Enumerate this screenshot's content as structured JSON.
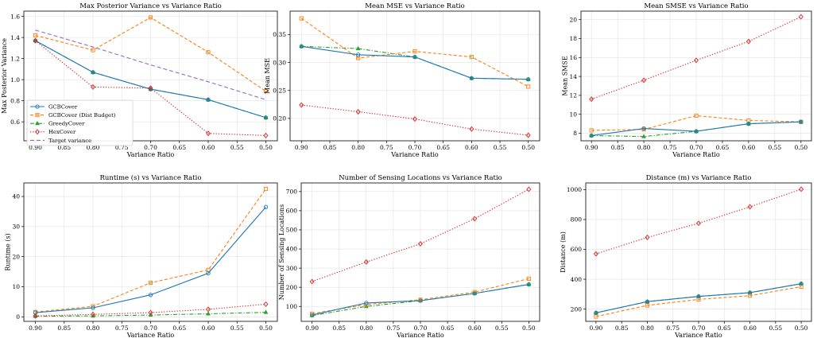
{
  "chart_data": [
    {
      "type": "line",
      "title": "Max Posterior Variance vs Variance Ratio",
      "xlabel": "Variance Ratio",
      "ylabel": "Max Posterior Variance",
      "x": [
        0.9,
        0.8,
        0.7,
        0.6,
        0.5
      ],
      "xlim": [
        0.92,
        0.48
      ],
      "ylim": [
        0.42,
        1.65
      ],
      "xticks": [
        "0.90",
        "0.85",
        "0.80",
        "0.75",
        "0.70",
        "0.65",
        "0.60",
        "0.55",
        "0.50"
      ],
      "yticks": [
        {
          "v": 0.6,
          "t": "0.6"
        },
        {
          "v": 0.8,
          "t": "0.8"
        },
        {
          "v": 1.0,
          "t": "1.0"
        },
        {
          "v": 1.2,
          "t": "1.2"
        },
        {
          "v": 1.4,
          "t": "1.4"
        },
        {
          "v": 1.6,
          "t": "1.6"
        }
      ],
      "legend": "lower-left",
      "series": [
        {
          "name": "GCBCover",
          "style": "gcb",
          "values": [
            1.37,
            1.07,
            0.91,
            0.81,
            0.64
          ]
        },
        {
          "name": "GCBCover (Dist Budget)",
          "style": "dist",
          "values": [
            1.42,
            1.28,
            1.59,
            1.26,
            0.89
          ]
        },
        {
          "name": "GreedyCover",
          "style": "greedy",
          "values": [
            1.37,
            1.07,
            0.91,
            0.81,
            0.64
          ]
        },
        {
          "name": "HexCover",
          "style": "hex",
          "values": [
            1.37,
            0.93,
            0.92,
            0.49,
            0.47
          ]
        },
        {
          "name": "Target variance",
          "style": "target",
          "values": [
            1.47,
            1.31,
            1.14,
            0.98,
            0.81
          ]
        }
      ]
    },
    {
      "type": "line",
      "title": "Mean MSE vs Variance Ratio",
      "xlabel": "Variance Ratio",
      "ylabel": "Mean MSE",
      "x": [
        0.9,
        0.8,
        0.7,
        0.6,
        0.5
      ],
      "xlim": [
        0.92,
        0.48
      ],
      "ylim": [
        0.16,
        0.392
      ],
      "xticks": [
        "0.90",
        "0.85",
        "0.80",
        "0.75",
        "0.70",
        "0.65",
        "0.60",
        "0.55",
        "0.50"
      ],
      "yticks": [
        {
          "v": 0.2,
          "t": "0.20"
        },
        {
          "v": 0.25,
          "t": "0.25"
        },
        {
          "v": 0.3,
          "t": "0.30"
        },
        {
          "v": 0.35,
          "t": "0.35"
        }
      ],
      "series": [
        {
          "name": "GCBCover",
          "style": "gcb",
          "values": [
            0.329,
            0.314,
            0.31,
            0.272,
            0.27
          ]
        },
        {
          "name": "GCBCover (Dist Budget)",
          "style": "dist",
          "values": [
            0.379,
            0.308,
            0.32,
            0.31,
            0.257
          ]
        },
        {
          "name": "GreedyCover",
          "style": "greedy",
          "values": [
            0.329,
            0.325,
            0.31,
            0.272,
            0.27
          ]
        },
        {
          "name": "HexCover",
          "style": "hex",
          "values": [
            0.224,
            0.212,
            0.199,
            0.181,
            0.17
          ]
        }
      ]
    },
    {
      "type": "line",
      "title": "Mean SMSE vs Variance Ratio",
      "xlabel": "Variance Ratio",
      "ylabel": "Mean SMSE",
      "x": [
        0.9,
        0.8,
        0.7,
        0.6,
        0.5
      ],
      "xlim": [
        0.92,
        0.48
      ],
      "ylim": [
        7.2,
        20.9
      ],
      "xticks": [
        "0.90",
        "0.85",
        "0.80",
        "0.75",
        "0.70",
        "0.65",
        "0.60",
        "0.55",
        "0.50"
      ],
      "yticks": [
        {
          "v": 8,
          "t": "8"
        },
        {
          "v": 10,
          "t": "10"
        },
        {
          "v": 12,
          "t": "12"
        },
        {
          "v": 14,
          "t": "14"
        },
        {
          "v": 16,
          "t": "16"
        },
        {
          "v": 18,
          "t": "18"
        },
        {
          "v": 20,
          "t": "20"
        }
      ],
      "series": [
        {
          "name": "GCBCover",
          "style": "gcb",
          "values": [
            7.75,
            8.5,
            8.2,
            9.0,
            9.2
          ]
        },
        {
          "name": "GCBCover (Dist Budget)",
          "style": "dist",
          "values": [
            8.3,
            8.4,
            9.85,
            9.35,
            9.2
          ]
        },
        {
          "name": "GreedyCover",
          "style": "greedy",
          "values": [
            7.75,
            7.65,
            8.2,
            9.0,
            9.2
          ]
        },
        {
          "name": "HexCover",
          "style": "hex",
          "values": [
            11.6,
            13.6,
            15.7,
            17.7,
            20.3
          ]
        }
      ]
    },
    {
      "type": "line",
      "title": "Runtime (s) vs Variance Ratio",
      "xlabel": "Variance Ratio",
      "ylabel": "Runtime (s)",
      "x": [
        0.9,
        0.8,
        0.7,
        0.6,
        0.5
      ],
      "xlim": [
        0.92,
        0.48
      ],
      "ylim": [
        -1.5,
        44.5
      ],
      "xticks": [
        "0.90",
        "0.85",
        "0.80",
        "0.75",
        "0.70",
        "0.65",
        "0.60",
        "0.55",
        "0.50"
      ],
      "yticks": [
        {
          "v": 0,
          "t": "0"
        },
        {
          "v": 10,
          "t": "10"
        },
        {
          "v": 20,
          "t": "20"
        },
        {
          "v": 30,
          "t": "30"
        },
        {
          "v": 40,
          "t": "40"
        }
      ],
      "series": [
        {
          "name": "GCBCover",
          "style": "gcb",
          "values": [
            1.4,
            3.0,
            7.3,
            14.5,
            36.5
          ]
        },
        {
          "name": "GCBCover (Dist Budget)",
          "style": "dist",
          "values": [
            1.6,
            3.5,
            11.3,
            15.6,
            42.5
          ]
        },
        {
          "name": "GreedyCover",
          "style": "greedy",
          "values": [
            0.2,
            0.3,
            0.6,
            1.0,
            1.5
          ]
        },
        {
          "name": "HexCover",
          "style": "hex",
          "values": [
            0.3,
            0.8,
            1.4,
            2.5,
            4.2
          ]
        }
      ]
    },
    {
      "type": "line",
      "title": "Number of Sensing Locations vs Variance Ratio",
      "xlabel": "Variance Ratio",
      "ylabel": "Number of Sensing Locations",
      "x": [
        0.9,
        0.8,
        0.7,
        0.6,
        0.5
      ],
      "xlim": [
        0.92,
        0.48
      ],
      "ylim": [
        22,
        745
      ],
      "xticks": [
        "0.90",
        "0.85",
        "0.80",
        "0.75",
        "0.70",
        "0.65",
        "0.60",
        "0.55",
        "0.50"
      ],
      "yticks": [
        {
          "v": 100,
          "t": "100"
        },
        {
          "v": 200,
          "t": "200"
        },
        {
          "v": 300,
          "t": "300"
        },
        {
          "v": 400,
          "t": "400"
        },
        {
          "v": 500,
          "t": "500"
        },
        {
          "v": 600,
          "t": "600"
        },
        {
          "v": 700,
          "t": "700"
        }
      ],
      "series": [
        {
          "name": "GCBCover",
          "style": "gcb",
          "values": [
            55,
            118,
            130,
            168,
            215
          ]
        },
        {
          "name": "GCBCover (Dist Budget)",
          "style": "dist",
          "values": [
            62,
            110,
            135,
            175,
            245
          ]
        },
        {
          "name": "GreedyCover",
          "style": "greedy",
          "values": [
            52,
            100,
            130,
            168,
            215
          ]
        },
        {
          "name": "HexCover",
          "style": "hex",
          "values": [
            230,
            332,
            427,
            558,
            712
          ]
        }
      ]
    },
    {
      "type": "line",
      "title": "Distance (m) vs Variance Ratio",
      "xlabel": "Variance Ratio",
      "ylabel": "Distance (m)",
      "x": [
        0.9,
        0.8,
        0.7,
        0.6,
        0.5
      ],
      "xlim": [
        0.92,
        0.48
      ],
      "ylim": [
        118,
        1045
      ],
      "xticks": [
        "0.90",
        "0.85",
        "0.80",
        "0.75",
        "0.70",
        "0.65",
        "0.60",
        "0.55",
        "0.50"
      ],
      "yticks": [
        {
          "v": 200,
          "t": "200"
        },
        {
          "v": 400,
          "t": "400"
        },
        {
          "v": 600,
          "t": "600"
        },
        {
          "v": 800,
          "t": "800"
        },
        {
          "v": 1000,
          "t": "1000"
        }
      ],
      "series": [
        {
          "name": "GCBCover",
          "style": "gcb",
          "values": [
            175,
            250,
            285,
            310,
            370
          ]
        },
        {
          "name": "GCBCover (Dist Budget)",
          "style": "dist",
          "values": [
            150,
            225,
            265,
            290,
            350
          ]
        },
        {
          "name": "GreedyCover",
          "style": "greedy",
          "values": [
            175,
            250,
            285,
            310,
            370
          ]
        },
        {
          "name": "HexCover",
          "style": "hex",
          "values": [
            570,
            680,
            775,
            885,
            1003
          ]
        }
      ]
    }
  ],
  "colors": {
    "gcb": "#1f77b4",
    "dist": "#ff7f0e",
    "greedy": "#2ca02c",
    "hex": "#d62728",
    "target": "#9467bd"
  }
}
